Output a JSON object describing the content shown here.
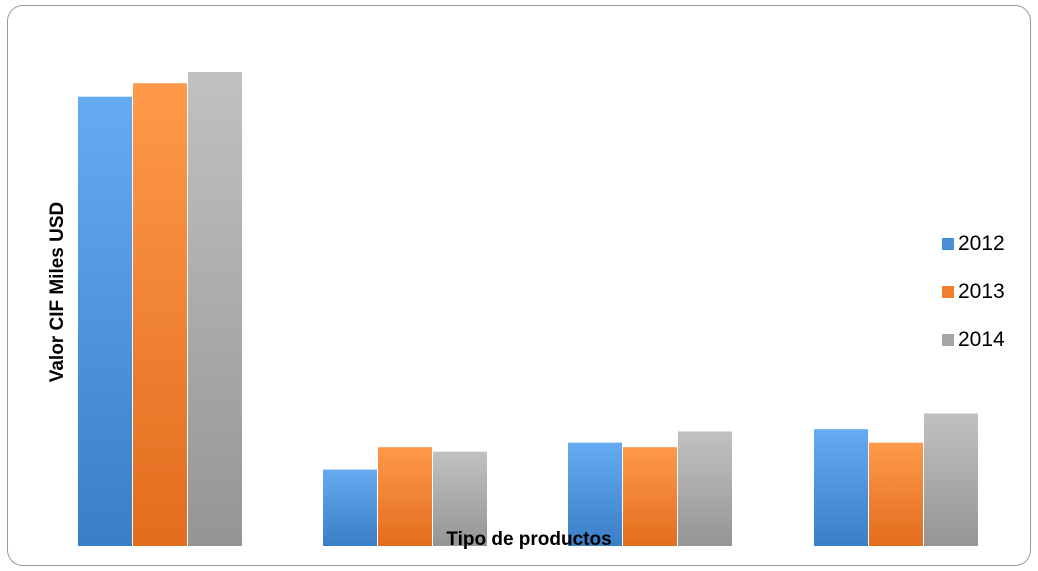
{
  "chart_data": {
    "type": "bar",
    "title": "",
    "xlabel": "Tipo de productos",
    "ylabel": "Valor CIF Miles USD",
    "categories": [
      "",
      "",
      "",
      ""
    ],
    "series": [
      {
        "name": "2012",
        "color": "#4a8fd6",
        "values": [
          100,
          17,
          23,
          26
        ]
      },
      {
        "name": "2013",
        "color": "#f27d2e",
        "values": [
          103,
          22,
          22,
          23
        ]
      },
      {
        "name": "2014",
        "color": "#a5a5a5",
        "values": [
          105.5,
          21,
          25.5,
          29.5
        ]
      }
    ],
    "ylim": [
      0,
      120
    ],
    "grid": false,
    "legend_position": "right"
  }
}
